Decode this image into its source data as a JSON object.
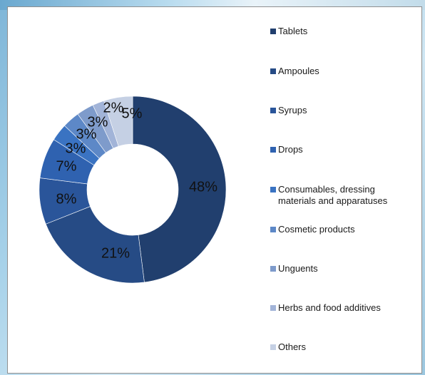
{
  "chart_data": {
    "type": "pie",
    "variant": "donut",
    "title": "",
    "categories": [
      "Tablets",
      "Ampoules",
      "Syrups",
      "Drops",
      "Consumables, dressing\nmaterials and apparatuses",
      "Cosmetic products",
      "Unguents",
      "Herbs and food additives",
      "Others"
    ],
    "values": [
      48,
      21,
      8,
      7,
      3,
      3,
      3,
      2,
      5
    ],
    "labels": [
      "48%",
      "21%",
      "8%",
      "7%",
      "3%",
      "3%",
      "3%",
      "2%",
      "5%"
    ],
    "colors": [
      "#213f6e",
      "#264b85",
      "#2a559a",
      "#2f62b0",
      "#3a73c2",
      "#5d88c7",
      "#7e9bcb",
      "#a2b4d8",
      "#c5d0e4"
    ],
    "legend_position": "right"
  }
}
